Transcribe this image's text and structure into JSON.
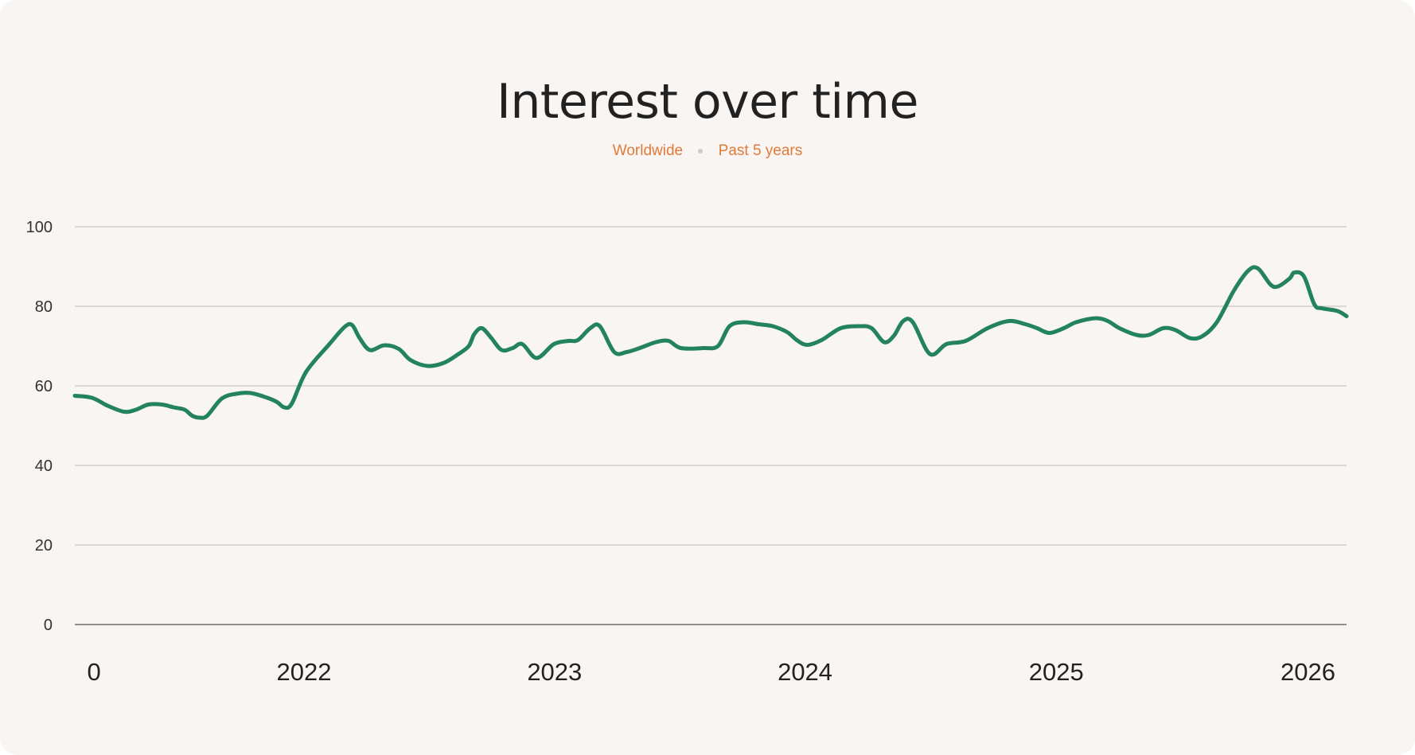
{
  "chart_data": {
    "type": "line",
    "title": "Interest over time",
    "subtitle_tags": [
      "Worldwide",
      "Past 5 years"
    ],
    "xlabel": "",
    "ylabel": "",
    "ylim": [
      0,
      100
    ],
    "yticks": [
      0,
      20,
      40,
      60,
      80,
      100
    ],
    "xlim": [
      "2021-02-01",
      "2026-02-28"
    ],
    "xticks": [
      {
        "date": "2021-03-01",
        "label": "0"
      },
      {
        "date": "2022-01-01",
        "label": "2022"
      },
      {
        "date": "2023-01-01",
        "label": "2023"
      },
      {
        "date": "2024-01-01",
        "label": "2024"
      },
      {
        "date": "2025-01-01",
        "label": "2025"
      },
      {
        "date": "2026-01-01",
        "label": "2026"
      }
    ],
    "grid": true,
    "legend": "none",
    "series": [
      {
        "color": "#23825f",
        "points": [
          [
            "2021-02-01",
            57.5
          ],
          [
            "2021-02-26",
            57.0
          ],
          [
            "2021-03-21",
            55.0
          ],
          [
            "2021-04-14",
            53.5
          ],
          [
            "2021-05-01",
            54.0
          ],
          [
            "2021-05-19",
            55.3
          ],
          [
            "2021-06-08",
            55.3
          ],
          [
            "2021-06-25",
            54.6
          ],
          [
            "2021-07-11",
            54.0
          ],
          [
            "2021-07-22",
            52.5
          ],
          [
            "2021-08-02",
            52.0
          ],
          [
            "2021-08-13",
            52.5
          ],
          [
            "2021-09-03",
            56.8
          ],
          [
            "2021-09-24",
            58.0
          ],
          [
            "2021-10-15",
            58.2
          ],
          [
            "2021-11-05",
            57.2
          ],
          [
            "2021-11-22",
            56.0
          ],
          [
            "2021-12-03",
            54.6
          ],
          [
            "2021-12-14",
            55.5
          ],
          [
            "2022-01-04",
            63.5
          ],
          [
            "2022-02-07",
            70.5
          ],
          [
            "2022-03-01",
            74.8
          ],
          [
            "2022-03-12",
            75.3
          ],
          [
            "2022-03-23",
            72.0
          ],
          [
            "2022-04-07",
            69.0
          ],
          [
            "2022-04-28",
            70.2
          ],
          [
            "2022-05-19",
            69.3
          ],
          [
            "2022-06-05",
            66.5
          ],
          [
            "2022-06-30",
            65.0
          ],
          [
            "2022-07-24",
            65.8
          ],
          [
            "2022-08-14",
            68.0
          ],
          [
            "2022-08-29",
            70.0
          ],
          [
            "2022-09-06",
            73.0
          ],
          [
            "2022-09-17",
            74.5
          ],
          [
            "2022-10-01",
            72.0
          ],
          [
            "2022-10-16",
            69.0
          ],
          [
            "2022-11-01",
            69.5
          ],
          [
            "2022-11-15",
            70.5
          ],
          [
            "2022-12-06",
            67.0
          ],
          [
            "2022-12-31",
            70.5
          ],
          [
            "2023-01-21",
            71.3
          ],
          [
            "2023-02-04",
            71.5
          ],
          [
            "2023-02-22",
            74.5
          ],
          [
            "2023-03-08",
            75.0
          ],
          [
            "2023-03-29",
            68.5
          ],
          [
            "2023-04-16",
            68.5
          ],
          [
            "2023-05-05",
            69.5
          ],
          [
            "2023-05-29",
            71.0
          ],
          [
            "2023-06-16",
            71.3
          ],
          [
            "2023-07-04",
            69.5
          ],
          [
            "2023-08-06",
            69.5
          ],
          [
            "2023-08-27",
            70.0
          ],
          [
            "2023-09-13",
            75.0
          ],
          [
            "2023-10-04",
            76.0
          ],
          [
            "2023-10-25",
            75.5
          ],
          [
            "2023-11-15",
            75.0
          ],
          [
            "2023-12-06",
            73.5
          ],
          [
            "2023-12-20",
            71.5
          ],
          [
            "2024-01-04",
            70.3
          ],
          [
            "2024-01-25",
            71.5
          ],
          [
            "2024-02-22",
            74.5
          ],
          [
            "2024-03-21",
            75.0
          ],
          [
            "2024-04-07",
            74.5
          ],
          [
            "2024-04-25",
            71.0
          ],
          [
            "2024-05-09",
            72.5
          ],
          [
            "2024-05-23",
            76.3
          ],
          [
            "2024-06-06",
            76.0
          ],
          [
            "2024-07-01",
            68.0
          ],
          [
            "2024-07-25",
            70.5
          ],
          [
            "2024-08-22",
            71.3
          ],
          [
            "2024-09-23",
            74.5
          ],
          [
            "2024-10-24",
            76.3
          ],
          [
            "2024-11-17",
            75.5
          ],
          [
            "2024-12-04",
            74.5
          ],
          [
            "2024-12-22",
            73.3
          ],
          [
            "2025-01-12",
            74.5
          ],
          [
            "2025-01-30",
            76.0
          ],
          [
            "2025-02-27",
            77.0
          ],
          [
            "2025-03-17",
            76.3
          ],
          [
            "2025-04-03",
            74.5
          ],
          [
            "2025-04-28",
            72.8
          ],
          [
            "2025-05-16",
            72.8
          ],
          [
            "2025-06-06",
            74.5
          ],
          [
            "2025-06-24",
            74.0
          ],
          [
            "2025-07-15",
            72.0
          ],
          [
            "2025-08-02",
            72.5
          ],
          [
            "2025-08-23",
            76.0
          ],
          [
            "2025-09-17",
            84.0
          ],
          [
            "2025-10-08",
            89.0
          ],
          [
            "2025-10-22",
            89.5
          ],
          [
            "2025-11-09",
            85.5
          ],
          [
            "2025-11-20",
            85.0
          ],
          [
            "2025-12-07",
            87.0
          ],
          [
            "2025-12-14",
            88.5
          ],
          [
            "2025-12-28",
            87.5
          ],
          [
            "2026-01-12",
            80.5
          ],
          [
            "2026-01-23",
            79.5
          ],
          [
            "2026-02-15",
            78.8
          ],
          [
            "2026-02-28",
            77.5
          ]
        ]
      }
    ]
  }
}
